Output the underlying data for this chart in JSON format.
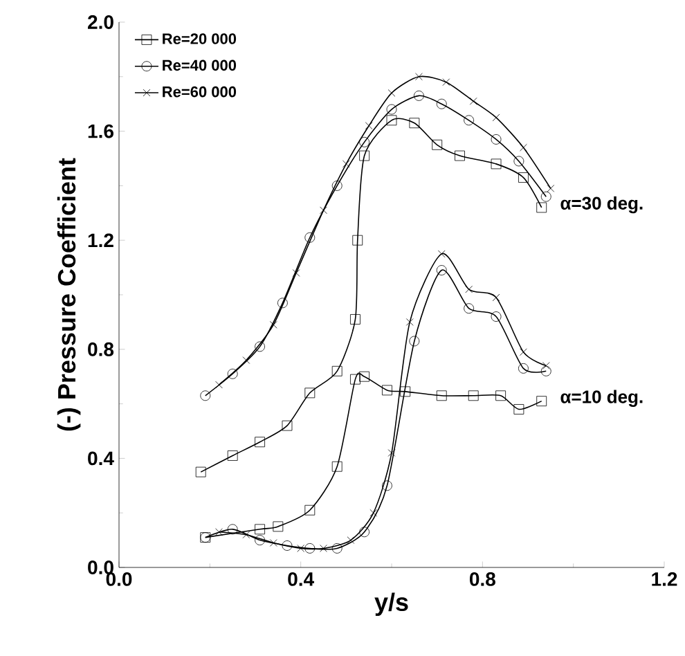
{
  "chart_data": {
    "type": "line",
    "xlabel": "y/s",
    "ylabel": "(-) Pressure Coefficient",
    "xlim": [
      0.0,
      1.2
    ],
    "ylim": [
      0.0,
      2.0
    ],
    "xticks": [
      {
        "value": 0.0,
        "label": "0.0"
      },
      {
        "value": 0.4,
        "label": "0.4"
      },
      {
        "value": 0.8,
        "label": "0.8"
      },
      {
        "value": 1.2,
        "label": "1.2"
      }
    ],
    "yticks": [
      {
        "value": 0.0,
        "label": "0.0"
      },
      {
        "value": 0.4,
        "label": "0.4"
      },
      {
        "value": 0.8,
        "label": "0.8"
      },
      {
        "value": 1.2,
        "label": "1.2"
      },
      {
        "value": 1.6,
        "label": "1.6"
      },
      {
        "value": 2.0,
        "label": "2.0"
      }
    ],
    "grid": false,
    "legend": "top left",
    "line_style": "solid",
    "series": [
      {
        "name": "Re=20 000",
        "color": "#000000",
        "marker": "square",
        "x": [
          0.18,
          0.25,
          0.31,
          0.37,
          0.42,
          0.48,
          0.52,
          0.525,
          0.54,
          0.6,
          0.65,
          0.7,
          0.75,
          0.83,
          0.89,
          0.93
        ],
        "values": [
          0.35,
          0.41,
          0.46,
          0.52,
          0.64,
          0.72,
          0.91,
          1.2,
          1.51,
          1.64,
          1.63,
          1.55,
          1.51,
          1.48,
          1.43,
          1.32
        ]
      },
      {
        "name": "Re=40 000",
        "color": "#000000",
        "marker": "circle",
        "x": [
          0.19,
          0.25,
          0.31,
          0.36,
          0.42,
          0.48,
          0.54,
          0.6,
          0.66,
          0.71,
          0.77,
          0.83,
          0.88,
          0.94
        ],
        "values": [
          0.63,
          0.71,
          0.81,
          0.97,
          1.21,
          1.4,
          1.56,
          1.68,
          1.73,
          1.7,
          1.64,
          1.57,
          1.49,
          1.36
        ]
      },
      {
        "name": "Re=60 000",
        "color": "#000000",
        "marker": "cross",
        "x": [
          0.22,
          0.28,
          0.34,
          0.39,
          0.45,
          0.5,
          0.55,
          0.6,
          0.66,
          0.72,
          0.78,
          0.83,
          0.89,
          0.95
        ],
        "values": [
          0.67,
          0.76,
          0.89,
          1.08,
          1.31,
          1.48,
          1.62,
          1.74,
          1.8,
          1.78,
          1.71,
          1.65,
          1.54,
          1.39
        ]
      },
      {
        "color": "#000000",
        "marker": "square",
        "x": [
          0.19,
          0.31,
          0.35,
          0.42,
          0.48,
          0.52,
          0.54,
          0.59,
          0.63,
          0.71,
          0.78,
          0.84,
          0.88,
          0.93
        ],
        "values": [
          0.11,
          0.14,
          0.15,
          0.21,
          0.37,
          0.69,
          0.7,
          0.65,
          0.645,
          0.63,
          0.63,
          0.63,
          0.58,
          0.61
        ]
      },
      {
        "color": "#000000",
        "marker": "circle",
        "x": [
          0.19,
          0.25,
          0.31,
          0.37,
          0.42,
          0.48,
          0.54,
          0.59,
          0.65,
          0.71,
          0.77,
          0.83,
          0.89,
          0.94
        ],
        "values": [
          0.11,
          0.14,
          0.1,
          0.08,
          0.07,
          0.07,
          0.13,
          0.3,
          0.83,
          1.09,
          0.95,
          0.92,
          0.73,
          0.72
        ]
      },
      {
        "color": "#000000",
        "marker": "cross",
        "x": [
          0.22,
          0.28,
          0.34,
          0.4,
          0.45,
          0.51,
          0.56,
          0.6,
          0.64,
          0.71,
          0.77,
          0.83,
          0.89,
          0.94
        ],
        "values": [
          0.13,
          0.12,
          0.09,
          0.07,
          0.07,
          0.1,
          0.2,
          0.42,
          0.9,
          1.15,
          1.02,
          0.99,
          0.79,
          0.74
        ]
      }
    ],
    "annotations": [
      "α=30 deg.",
      "α=10 deg."
    ]
  }
}
